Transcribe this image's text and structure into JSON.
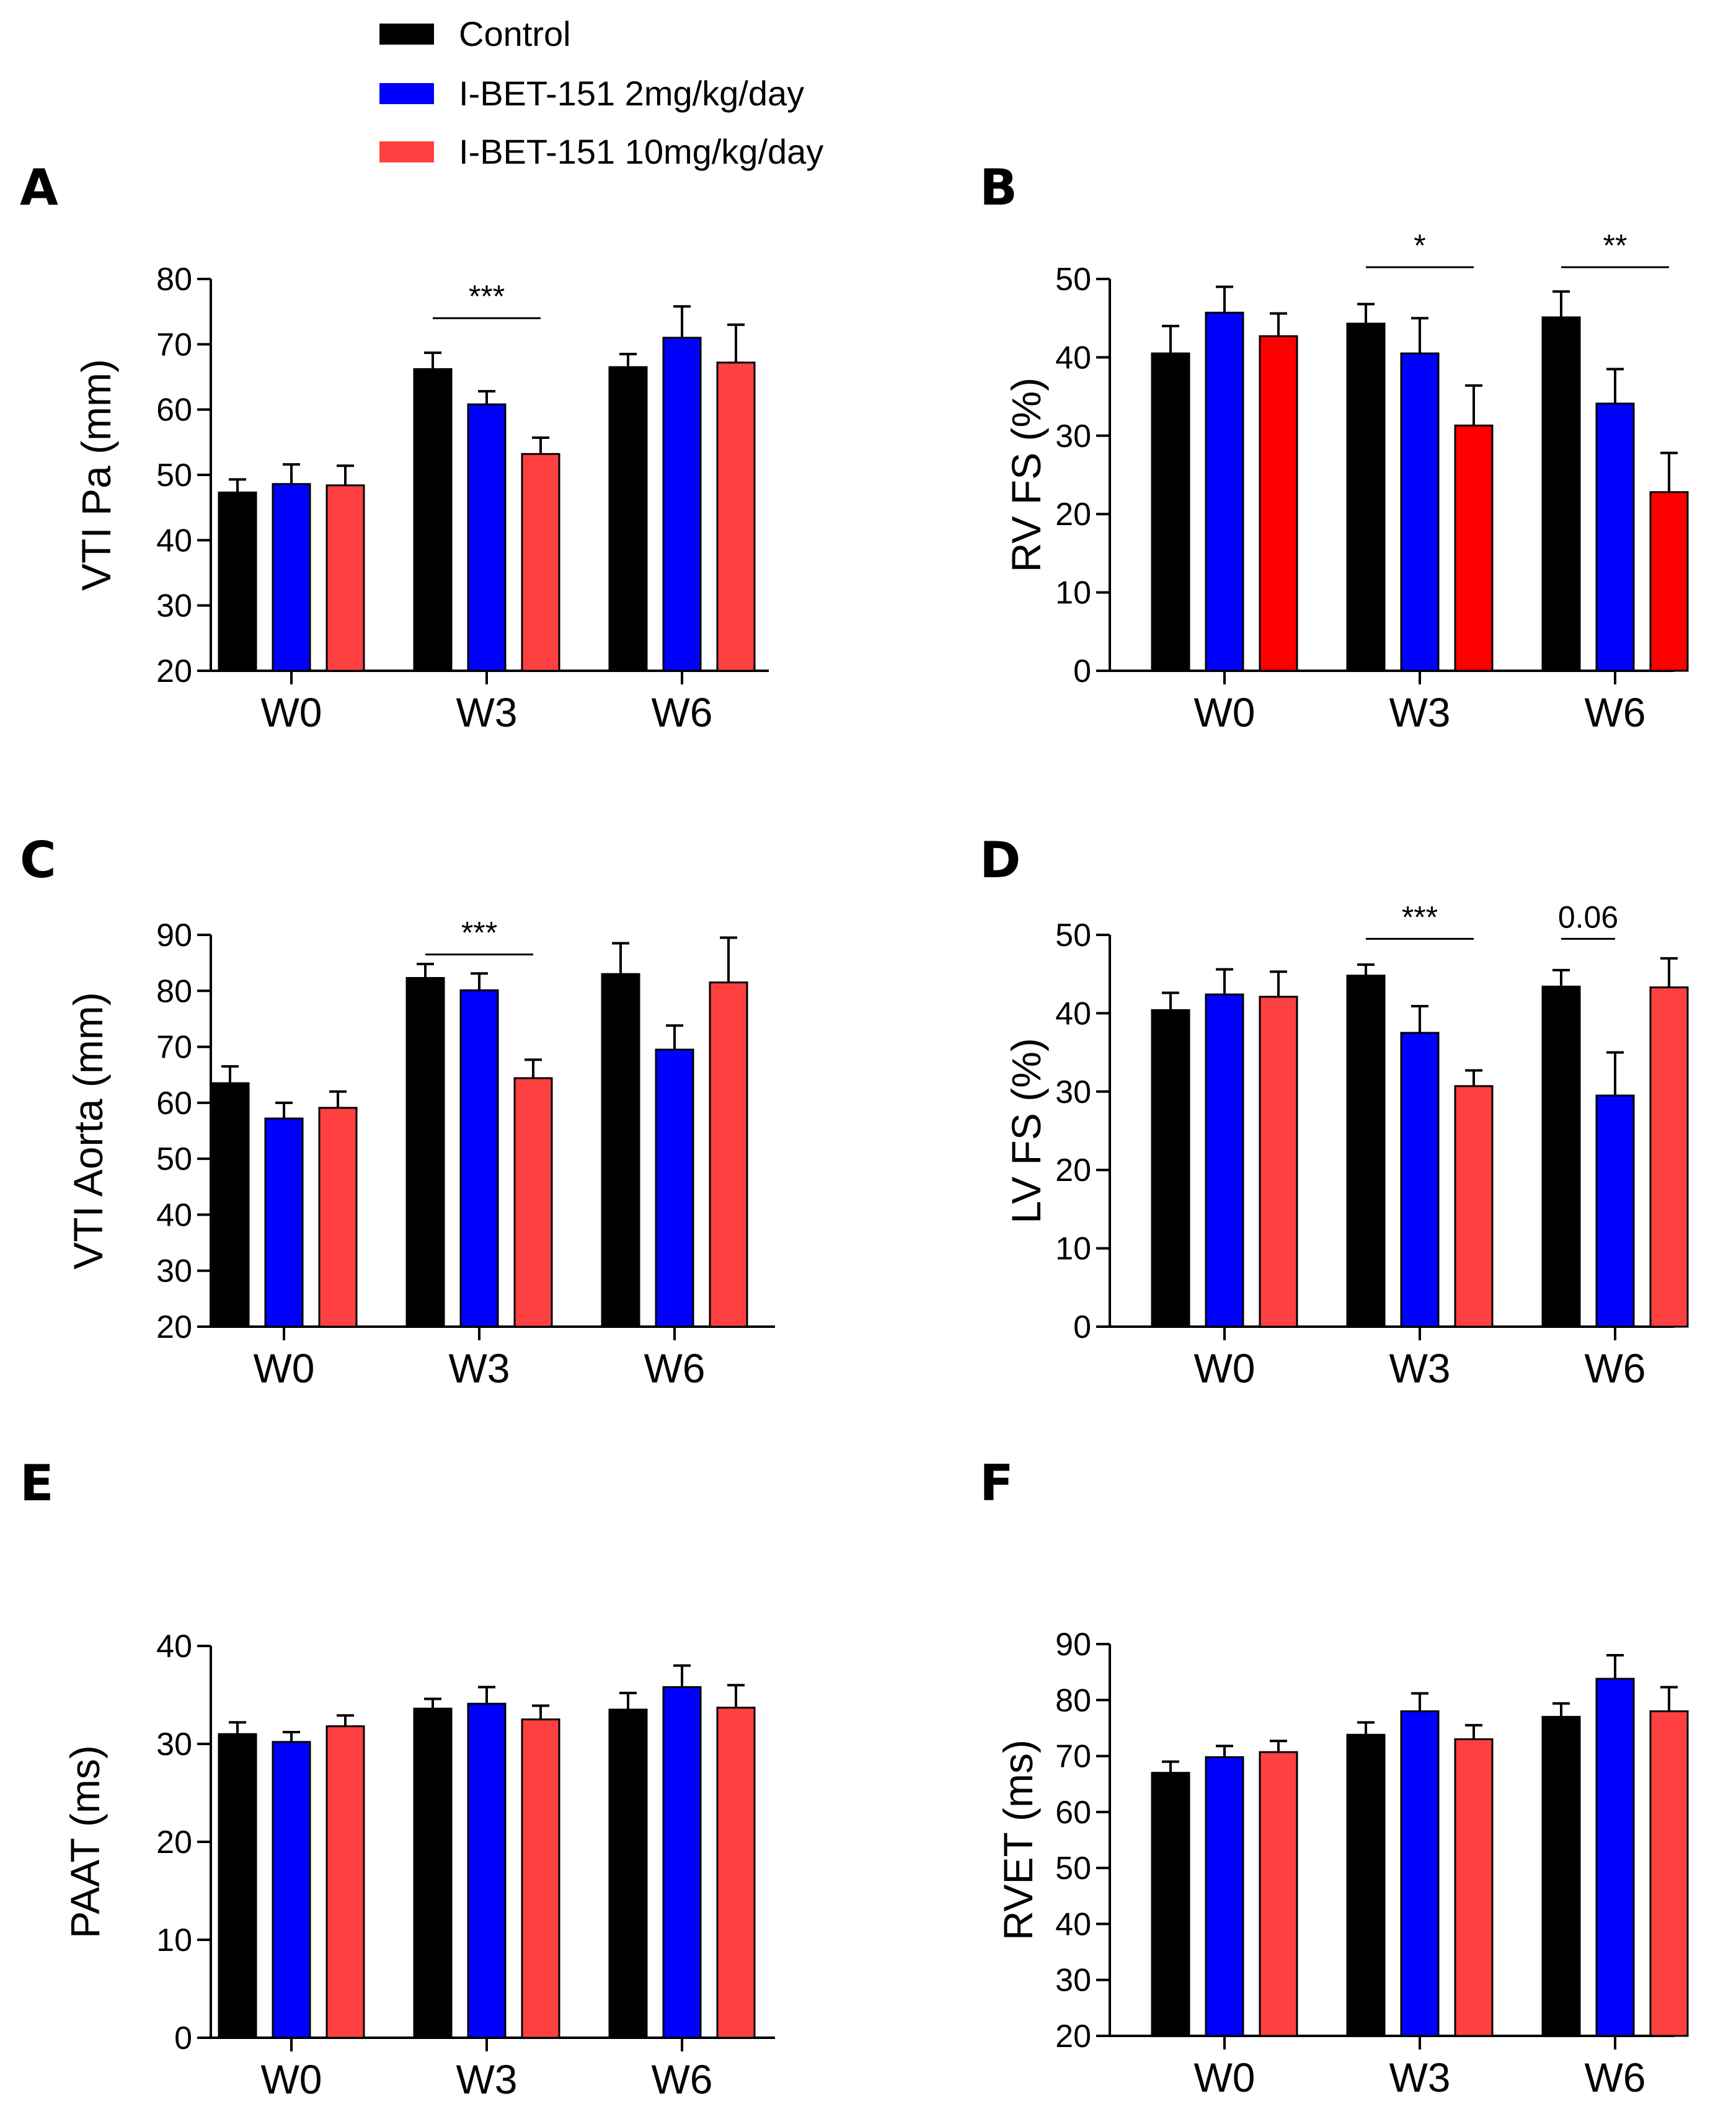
{
  "colors": {
    "control": "#000000",
    "low_dose": "#0000ff",
    "high_dose": "#ff4040",
    "high_dose_B": "#ff0000"
  },
  "legend": [
    {
      "label": "Control",
      "color_key": "control"
    },
    {
      "label": "I-BET-151 2mg/kg/day",
      "color_key": "low_dose"
    },
    {
      "label": "I-BET-151 10mg/kg/day",
      "color_key": "high_dose"
    }
  ],
  "chart_data": [
    {
      "panel": "A",
      "type": "bar",
      "ylabel": "VTI Pa (mm)",
      "ylim": [
        20,
        80
      ],
      "yticks": [
        20,
        30,
        40,
        50,
        60,
        70,
        80
      ],
      "categories": [
        "W0",
        "W3",
        "W6"
      ],
      "series": [
        {
          "name": "Control",
          "values": [
            47.3,
            66.2,
            66.5
          ],
          "errors": [
            2.0,
            2.5,
            2.0
          ]
        },
        {
          "name": "I-BET-151 2mg/kg/day",
          "values": [
            48.6,
            60.8,
            71.0
          ],
          "errors": [
            3.0,
            2.0,
            4.8
          ]
        },
        {
          "name": "I-BET-151 10mg/kg/day",
          "values": [
            48.4,
            53.2,
            67.2
          ],
          "errors": [
            3.0,
            2.5,
            5.8
          ]
        }
      ],
      "annotations": [
        {
          "text": "***",
          "category": 1,
          "from": 0,
          "to": 2,
          "y": 74
        }
      ]
    },
    {
      "panel": "B",
      "type": "bar",
      "ylabel": "RV FS (%)",
      "ylim": [
        0,
        50
      ],
      "yticks": [
        0,
        10,
        20,
        30,
        40,
        50
      ],
      "categories": [
        "W0",
        "W3",
        "W6"
      ],
      "series": [
        {
          "name": "Control",
          "values": [
            40.5,
            44.3,
            45.1
          ],
          "errors": [
            3.5,
            2.5,
            3.3
          ]
        },
        {
          "name": "I-BET-151 2mg/kg/day",
          "values": [
            45.7,
            40.5,
            34.1
          ],
          "errors": [
            3.3,
            4.5,
            4.4
          ]
        },
        {
          "name": "I-BET-151 10mg/kg/day",
          "values": [
            42.7,
            31.3,
            22.8
          ],
          "errors": [
            2.9,
            5.1,
            5.0
          ]
        }
      ],
      "annotations": [
        {
          "text": "*",
          "category": 1,
          "from": 0,
          "to": 2,
          "y": 51.5
        },
        {
          "text": "**",
          "category": 2,
          "from": 0,
          "to": 2,
          "y": 51.5
        }
      ]
    },
    {
      "panel": "C",
      "type": "bar",
      "ylabel": "VTI Aorta (mm)",
      "ylim": [
        20,
        90
      ],
      "yticks": [
        20,
        30,
        40,
        50,
        60,
        70,
        80,
        90
      ],
      "categories": [
        "W0",
        "W3",
        "W6"
      ],
      "series": [
        {
          "name": "Control",
          "values": [
            63.5,
            82.3,
            83.0
          ],
          "errors": [
            3.0,
            2.5,
            5.5
          ]
        },
        {
          "name": "I-BET-151 2mg/kg/day",
          "values": [
            57.2,
            80.1,
            69.5
          ],
          "errors": [
            2.8,
            3.0,
            4.3
          ]
        },
        {
          "name": "I-BET-151 10mg/kg/day",
          "values": [
            59.1,
            64.4,
            81.5
          ],
          "errors": [
            2.9,
            3.3,
            8.0
          ]
        }
      ],
      "annotations": [
        {
          "text": "***",
          "category": 1,
          "from": 0,
          "to": 2,
          "y": 86.5
        }
      ]
    },
    {
      "panel": "D",
      "type": "bar",
      "ylabel": "LV FS (%)",
      "ylim": [
        0,
        50
      ],
      "yticks": [
        0,
        10,
        20,
        30,
        40,
        50
      ],
      "categories": [
        "W0",
        "W3",
        "W6"
      ],
      "series": [
        {
          "name": "Control",
          "values": [
            40.4,
            44.8,
            43.4
          ],
          "errors": [
            2.2,
            1.4,
            2.1
          ]
        },
        {
          "name": "I-BET-151 2mg/kg/day",
          "values": [
            42.4,
            37.5,
            29.5
          ],
          "errors": [
            3.2,
            3.4,
            5.5
          ]
        },
        {
          "name": "I-BET-151 10mg/kg/day",
          "values": [
            42.1,
            30.7,
            43.3
          ],
          "errors": [
            3.2,
            2.0,
            3.7
          ]
        }
      ],
      "annotations": [
        {
          "text": "***",
          "category": 1,
          "from": 0,
          "to": 2,
          "y": 49.5
        },
        {
          "text": "0.06",
          "category": 2,
          "from": 0,
          "to": 1,
          "y": 49.5
        }
      ]
    },
    {
      "panel": "E",
      "type": "bar",
      "ylabel": "PAAT (ms)",
      "ylim": [
        0,
        40
      ],
      "yticks": [
        0,
        10,
        20,
        30,
        40
      ],
      "categories": [
        "W0",
        "W3",
        "W6"
      ],
      "series": [
        {
          "name": "Control",
          "values": [
            31.0,
            33.6,
            33.5
          ],
          "errors": [
            1.2,
            1.0,
            1.7
          ]
        },
        {
          "name": "I-BET-151 2mg/kg/day",
          "values": [
            30.2,
            34.1,
            35.8
          ],
          "errors": [
            1.0,
            1.7,
            2.2
          ]
        },
        {
          "name": "I-BET-151 10mg/kg/day",
          "values": [
            31.8,
            32.5,
            33.7
          ],
          "errors": [
            1.1,
            1.4,
            2.3
          ]
        }
      ],
      "annotations": []
    },
    {
      "panel": "F",
      "type": "bar",
      "ylabel": "RVET (ms)",
      "ylim": [
        20,
        90
      ],
      "yticks": [
        20,
        30,
        40,
        50,
        60,
        70,
        80,
        90
      ],
      "categories": [
        "W0",
        "W3",
        "W6"
      ],
      "series": [
        {
          "name": "Control",
          "values": [
            67.0,
            73.8,
            77.0
          ],
          "errors": [
            2.0,
            2.2,
            2.4
          ]
        },
        {
          "name": "I-BET-151 2mg/kg/day",
          "values": [
            69.8,
            78.0,
            83.8
          ],
          "errors": [
            2.0,
            3.2,
            4.2
          ]
        },
        {
          "name": "I-BET-151 10mg/kg/day",
          "values": [
            70.7,
            73.0,
            78.0
          ],
          "errors": [
            2.0,
            2.5,
            4.3
          ]
        }
      ],
      "annotations": []
    }
  ]
}
